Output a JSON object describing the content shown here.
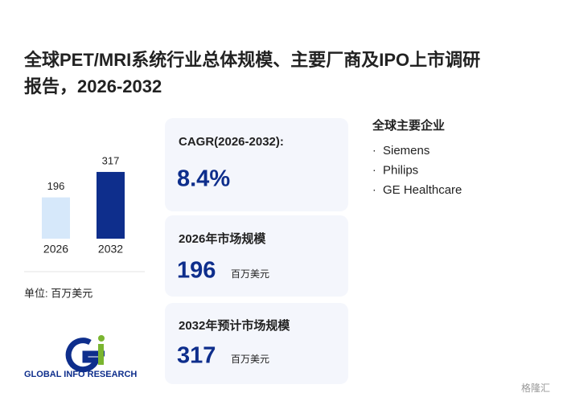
{
  "header": {
    "title_line1": "全球PET/MRI系统行业总体规模、主要厂商及IPO上市调研",
    "title_line2": "报告，2026-2032"
  },
  "chart_data": {
    "type": "bar",
    "categories": [
      "2026",
      "2032"
    ],
    "values": [
      196,
      317
    ],
    "colors": [
      "#d6e8fa",
      "#0e2e8c"
    ],
    "unit_label": "单位: 百万美元"
  },
  "cards": {
    "cagr_label": "CAGR(2026-2032):",
    "cagr_value": "8.4%",
    "size_2026_label": "2026年市场规模",
    "size_2032_label": "2032年预计市场规模",
    "unit": "百万美元"
  },
  "companies": {
    "title": "全球主要企业",
    "bullet": "·",
    "items": [
      "Siemens",
      "Philips",
      "GE Healthcare"
    ]
  },
  "brand": {
    "logo_text": "GLOBAL INFO RESEARCH",
    "corner": "格隆汇"
  }
}
